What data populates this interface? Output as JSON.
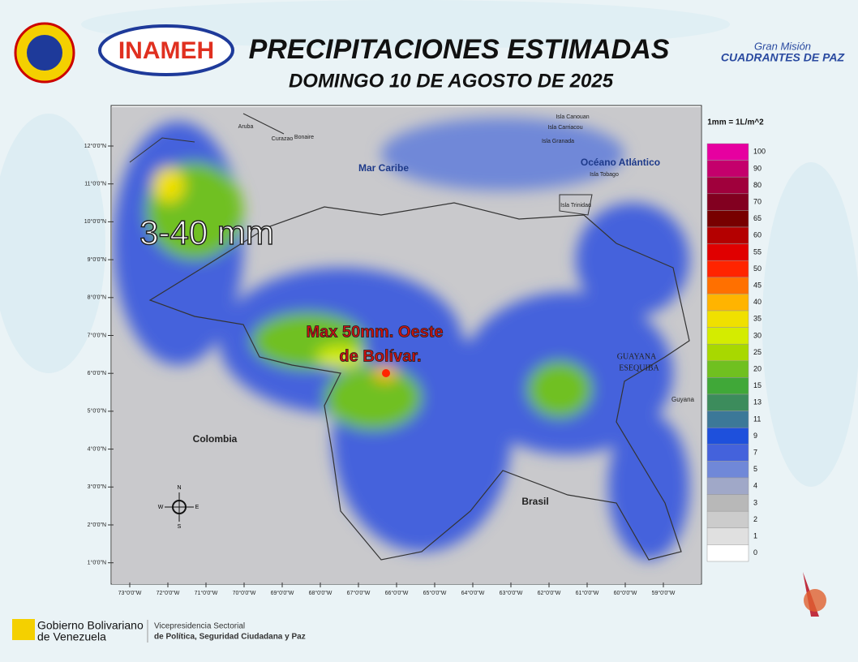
{
  "header": {
    "title": "PRECIPITACIONES ESTIMADAS",
    "subtitle": "DOMINGO 10 DE AGOSTO DE 2025",
    "logo_left": "INAMEH",
    "logo_right_top": "Gran Misión",
    "logo_right_bottom": "CUADRANTES DE PAZ"
  },
  "map": {
    "labels": [
      "Mar Caribe",
      "Océano Atlántico",
      "Colombia",
      "Brasil",
      "GUAYANA",
      "ESEQUIBA",
      "Guyana",
      "Isla Trinidad",
      "Isla Tobago",
      "Isla Granada",
      "Isla Carriacou",
      "Isla Canouan",
      "Aruba",
      "Curazao",
      "Bonaire"
    ],
    "annotations": [
      "3-40 mm",
      "Max 50mm. Oeste",
      "de Bolívar."
    ],
    "lat_ticks": [
      "12°0'0\"N",
      "11°0'0\"N",
      "10°0'0\"N",
      "9°0'0\"N",
      "8°0'0\"N",
      "7°0'0\"N",
      "6°0'0\"N",
      "5°0'0\"N",
      "4°0'0\"N",
      "3°0'0\"N",
      "2°0'0\"N",
      "1°0'0\"N"
    ],
    "lon_ticks": [
      "73°0'0\"W",
      "72°0'0\"W",
      "71°0'0\"W",
      "70°0'0\"W",
      "69°0'0\"W",
      "68°0'0\"W",
      "67°0'0\"W",
      "66°0'0\"W",
      "65°0'0\"W",
      "64°0'0\"W",
      "63°0'0\"W",
      "62°0'0\"W",
      "61°0'0\"W",
      "60°0'0\"W",
      "59°0'0\"W"
    ],
    "compass": [
      "N",
      "S",
      "E",
      "W"
    ]
  },
  "legend": {
    "title": "1mm = 1L/m^2",
    "items": [
      {
        "value": 100,
        "color": "#e600a0"
      },
      {
        "value": 90,
        "color": "#c4006c"
      },
      {
        "value": 80,
        "color": "#a0003c"
      },
      {
        "value": 70,
        "color": "#820020"
      },
      {
        "value": 65,
        "color": "#780000"
      },
      {
        "value": 60,
        "color": "#b40000"
      },
      {
        "value": 55,
        "color": "#e00000"
      },
      {
        "value": 50,
        "color": "#ff2400"
      },
      {
        "value": 45,
        "color": "#ff7000"
      },
      {
        "value": 40,
        "color": "#ffb400"
      },
      {
        "value": 35,
        "color": "#f0e000"
      },
      {
        "value": 30,
        "color": "#d4ec00"
      },
      {
        "value": 25,
        "color": "#a8d800"
      },
      {
        "value": 20,
        "color": "#70c020"
      },
      {
        "value": 15,
        "color": "#40a838"
      },
      {
        "value": 13,
        "color": "#3c8c5c"
      },
      {
        "value": 11,
        "color": "#3c7898"
      },
      {
        "value": 9,
        "color": "#1e50dc"
      },
      {
        "value": 7,
        "color": "#4462dc"
      },
      {
        "value": 5,
        "color": "#7088d8"
      },
      {
        "value": 4,
        "color": "#a0a8c8"
      },
      {
        "value": 3,
        "color": "#b8b8b8"
      },
      {
        "value": 2,
        "color": "#cccccc"
      },
      {
        "value": 1,
        "color": "#e0e0e0"
      },
      {
        "value": 0,
        "color": "#ffffff"
      }
    ]
  },
  "footer": {
    "gov_line1": "Gobierno Bolivariano",
    "gov_line2": "de Venezuela",
    "vice_line1": "Vicepresidencia Sectorial",
    "vice_line2": "de Política, Seguridad Ciudadana y Paz"
  }
}
